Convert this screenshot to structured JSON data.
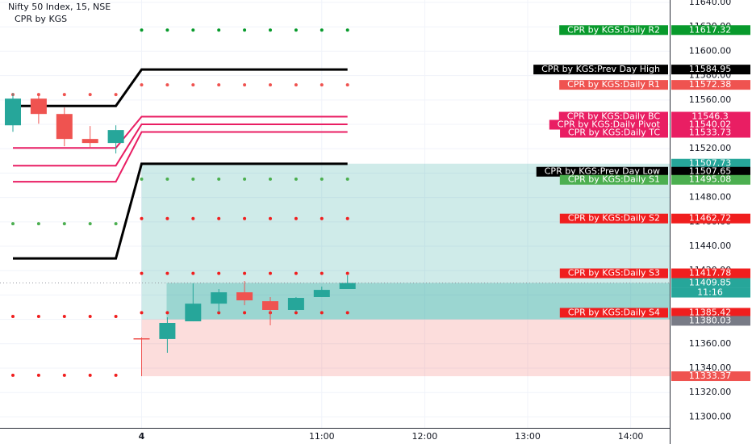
{
  "chart_data": {
    "type": "candlestick",
    "title": "Nifty 50 Index, 15, NSE",
    "subtitle": "CPR by KGS",
    "categories": [
      null,
      null,
      null,
      null,
      null,
      "4",
      null,
      null,
      null,
      null,
      null,
      null,
      "11:00",
      null,
      null,
      null,
      "12:00",
      null,
      null,
      null,
      "13:00",
      null,
      null,
      null,
      "14:00",
      null
    ],
    "open": [
      11539.2,
      11561.1,
      11548.5,
      11528.0,
      11524.7,
      11364.5,
      11363.9,
      11378.4,
      11392.9,
      11402.2,
      11394.9,
      11387.7,
      11398.3,
      11404.9,
      null,
      null,
      null,
      null,
      null,
      null,
      null,
      null,
      null,
      null,
      null,
      null
    ],
    "high": [
      11565.7,
      11563.7,
      11553.8,
      11538.6,
      11539.2,
      11365.2,
      11381.7,
      11409.5,
      11404.9,
      11411.5,
      11398.3,
      11398.3,
      11406.9,
      11416.1,
      null,
      null,
      null,
      null,
      null,
      null,
      null,
      null,
      null,
      null,
      null,
      null
    ],
    "low": [
      11533.9,
      11540.5,
      11522.0,
      11520.7,
      11516.1,
      11333.4,
      11352.6,
      11378.4,
      11385.7,
      11391.6,
      11375.1,
      11386.3,
      11398.3,
      11404.9,
      null,
      null,
      null,
      null,
      null,
      null,
      null,
      null,
      null,
      null,
      null,
      null
    ],
    "close": [
      11561.1,
      11548.5,
      11528.0,
      11524.7,
      11535.3,
      11363.9,
      11377.1,
      11392.9,
      11402.2,
      11395.6,
      11387.7,
      11397.6,
      11404.2,
      11409.85,
      null,
      null,
      null,
      null,
      null,
      null,
      null,
      null,
      null,
      null,
      null,
      null
    ],
    "up_color": "#26a69a",
    "down_color": "#ef5350",
    "countdown": "11:16",
    "position": {
      "target": 11507.73,
      "entry": 11380.03,
      "stop": 11333.37,
      "target_color": "#26a69a",
      "entry_color": "#787b86",
      "stop_color": "#ef5350"
    },
    "series": [
      {
        "name": "CPR by KGS:Daily R2",
        "color": "#089a2c",
        "style": "dots",
        "values": [
          null,
          null,
          null,
          null,
          null,
          11617.32,
          11617.32,
          11617.32,
          11617.32,
          11617.32,
          11617.32,
          11617.32,
          11617.32,
          11617.32,
          null,
          null,
          null,
          null,
          null,
          null,
          null,
          null,
          null,
          null,
          null,
          null
        ]
      },
      {
        "name": "CPR by KGS:Prev Day High",
        "color": "#000000",
        "style": "line",
        "values": [
          11555.1,
          11555.1,
          11555.1,
          11555.1,
          11555.1,
          11584.95,
          11584.95,
          11584.95,
          11584.95,
          11584.95,
          11584.95,
          11584.95,
          11584.95,
          11584.95,
          null,
          null,
          null,
          null,
          null,
          null,
          null,
          null,
          null,
          null,
          null,
          null
        ]
      },
      {
        "name": "CPR by KGS:Daily R1",
        "color": "#ef5350",
        "style": "dots",
        "values": [
          11564.4,
          11564.4,
          11564.4,
          11564.4,
          11564.4,
          11572.38,
          11572.38,
          11572.38,
          11572.38,
          11572.38,
          11572.38,
          11572.38,
          11572.38,
          11572.38,
          null,
          null,
          null,
          null,
          null,
          null,
          null,
          null,
          null,
          null,
          null,
          null
        ]
      },
      {
        "name": "CPR by KGS:Daily BC",
        "color": "#e91e63",
        "style": "line",
        "values": [
          11520.7,
          11520.7,
          11520.7,
          11520.7,
          11520.7,
          11546.3,
          11546.3,
          11546.3,
          11546.3,
          11546.3,
          11546.3,
          11546.3,
          11546.3,
          11546.3,
          null,
          null,
          null,
          null,
          null,
          null,
          null,
          null,
          null,
          null,
          null,
          null
        ]
      },
      {
        "name": "CPR by KGS:Daily Pivot",
        "color": "#e91e63",
        "style": "line",
        "values": [
          11506.1,
          11506.1,
          11506.1,
          11506.1,
          11506.1,
          11540.02,
          11540.02,
          11540.02,
          11540.02,
          11540.02,
          11540.02,
          11540.02,
          11540.02,
          11540.02,
          null,
          null,
          null,
          null,
          null,
          null,
          null,
          null,
          null,
          null,
          null,
          null
        ]
      },
      {
        "name": "CPR by KGS:Daily TC",
        "color": "#e91e63",
        "style": "line",
        "values": [
          11492.9,
          11492.9,
          11492.9,
          11492.9,
          11492.9,
          11533.73,
          11533.73,
          11533.73,
          11533.73,
          11533.73,
          11533.73,
          11533.73,
          11533.73,
          11533.73,
          null,
          null,
          null,
          null,
          null,
          null,
          null,
          null,
          null,
          null,
          null,
          null
        ]
      },
      {
        "name": "CPR by KGS:Prev Day Low",
        "color": "#000000",
        "style": "line",
        "values": [
          11430.0,
          11430.0,
          11430.0,
          11430.0,
          11430.0,
          11507.65,
          11507.65,
          11507.65,
          11507.65,
          11507.65,
          11507.65,
          11507.65,
          11507.65,
          11507.65,
          null,
          null,
          null,
          null,
          null,
          null,
          null,
          null,
          null,
          null,
          null,
          null
        ]
      },
      {
        "name": "CPR by KGS:Daily S1",
        "color": "#4caf50",
        "style": "dots",
        "values": [
          11458.5,
          11458.5,
          11458.5,
          11458.5,
          11458.5,
          11495.08,
          11495.08,
          11495.08,
          11495.08,
          11495.08,
          11495.08,
          11495.08,
          11495.08,
          11495.08,
          null,
          null,
          null,
          null,
          null,
          null,
          null,
          null,
          null,
          null,
          null,
          null
        ]
      },
      {
        "name": "CPR by KGS:Daily S2",
        "color": "#f01e1e",
        "style": "dots",
        "values": [
          11382.4,
          11382.4,
          11382.4,
          11382.4,
          11382.4,
          11462.72,
          11462.72,
          11462.72,
          11462.72,
          11462.72,
          11462.72,
          11462.72,
          11462.72,
          11462.72,
          null,
          null,
          null,
          null,
          null,
          null,
          null,
          null,
          null,
          null,
          null,
          null
        ]
      },
      {
        "name": "CPR by KGS:Daily S3",
        "color": "#f01e1e",
        "style": "dots",
        "values": [
          11334.1,
          11334.1,
          11334.1,
          11334.1,
          11334.1,
          11417.78,
          11417.78,
          11417.78,
          11417.78,
          11417.78,
          11417.78,
          11417.78,
          11417.78,
          11417.78,
          null,
          null,
          null,
          null,
          null,
          null,
          null,
          null,
          null,
          null,
          null,
          null
        ]
      },
      {
        "name": "CPR by KGS:Daily S4",
        "color": "#f01e1e",
        "style": "dots",
        "values": [
          null,
          null,
          null,
          null,
          null,
          11385.42,
          11385.42,
          11385.42,
          11385.42,
          11385.42,
          11385.42,
          11385.42,
          11385.42,
          11385.42,
          null,
          null,
          null,
          null,
          null,
          null,
          null,
          null,
          null,
          null,
          null,
          null
        ]
      }
    ],
    "ylim": [
      11291,
      11642
    ],
    "yticks": [
      {
        "value": 11300,
        "label": "11300.00"
      },
      {
        "value": 11320,
        "label": "11320.00"
      },
      {
        "value": 11340,
        "label": "11340.00"
      },
      {
        "value": 11360,
        "label": "11360.00"
      },
      {
        "value": 11380,
        "label": "11380.00"
      },
      {
        "value": 11400,
        "label": "11400.00"
      },
      {
        "value": 11420,
        "label": "11420.00"
      },
      {
        "value": 11440,
        "label": "11440.00"
      },
      {
        "value": 11460,
        "label": "11460.00"
      },
      {
        "value": 11480,
        "label": "11480.00"
      },
      {
        "value": 11500,
        "label": "11500.00"
      },
      {
        "value": 11520,
        "label": "11520.00"
      },
      {
        "value": 11540,
        "label": "11540.00"
      },
      {
        "value": 11560,
        "label": "11560.00"
      },
      {
        "value": 11580,
        "label": "11580.00"
      },
      {
        "value": 11600,
        "label": "11600.00"
      },
      {
        "value": 11620,
        "label": "11620.00"
      },
      {
        "value": 11640,
        "label": "11640.00"
      }
    ],
    "grid": true
  }
}
